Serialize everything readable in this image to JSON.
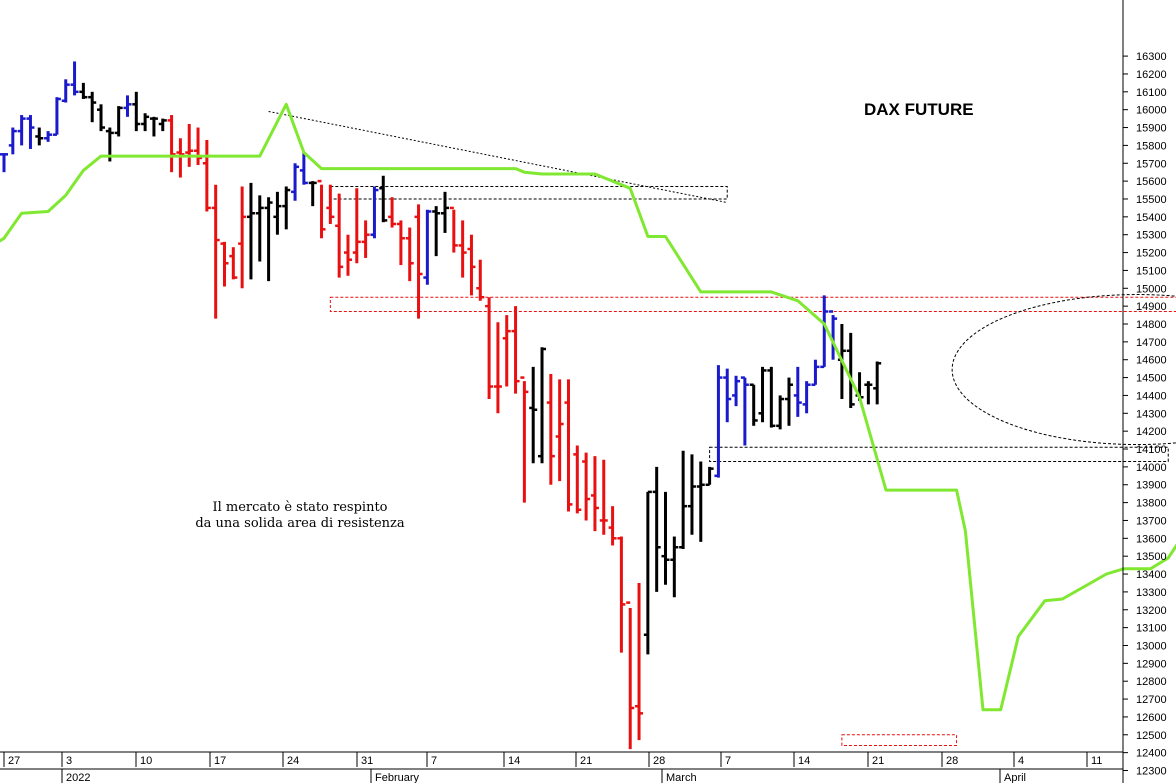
{
  "chart_data": {
    "type": "ohlc",
    "title": "DAX FUTURE",
    "annotation": [
      "Il mercato è stato respinto",
      "da una solida area di resistenza"
    ],
    "ylim": [
      12250,
      16400
    ],
    "y_ticks": [
      12300,
      12400,
      12500,
      12600,
      12700,
      12800,
      12900,
      13000,
      13100,
      13200,
      13300,
      13400,
      13500,
      13600,
      13700,
      13800,
      13900,
      14000,
      14100,
      14200,
      14300,
      14400,
      14500,
      14600,
      14700,
      14800,
      14900,
      15000,
      15100,
      15200,
      15300,
      15400,
      15500,
      15600,
      15700,
      15800,
      15900,
      16000,
      16100,
      16200,
      16300
    ],
    "x_day_labels": [
      "27",
      "3",
      "10",
      "17",
      "24",
      "31",
      "7",
      "14",
      "21",
      "28",
      "7",
      "14",
      "21",
      "28",
      "4",
      "11"
    ],
    "x_month_labels": [
      "2022",
      "February",
      "March",
      "April"
    ],
    "colors": {
      "up": "#1a1acc",
      "down": "#e81010",
      "neutral": "#000000",
      "stop": "#80e830",
      "box_red": "#e81010",
      "box_black": "#000000"
    },
    "bars": [
      {
        "d": 0,
        "o": 15750,
        "h": 15750,
        "l": 15650,
        "c": 15750,
        "k": "up"
      },
      {
        "d": 1,
        "o": 15800,
        "h": 15900,
        "l": 15750,
        "c": 15880,
        "k": "up"
      },
      {
        "d": 2,
        "o": 15880,
        "h": 15970,
        "l": 15800,
        "c": 15950,
        "k": "up"
      },
      {
        "d": 3,
        "o": 15950,
        "h": 15970,
        "l": 15780,
        "c": 15900,
        "k": "up"
      },
      {
        "d": 4,
        "o": 15850,
        "h": 15900,
        "l": 15800,
        "c": 15840,
        "k": "neutral"
      },
      {
        "d": 5,
        "o": 15840,
        "h": 15880,
        "l": 15820,
        "c": 15860,
        "k": "up"
      },
      {
        "d": 6,
        "o": 15860,
        "h": 16070,
        "l": 15860,
        "c": 16060,
        "k": "up"
      },
      {
        "d": 7,
        "o": 16050,
        "h": 16170,
        "l": 16040,
        "c": 16140,
        "k": "up"
      },
      {
        "d": 8,
        "o": 16140,
        "h": 16270,
        "l": 16080,
        "c": 16100,
        "k": "up"
      },
      {
        "d": 9,
        "o": 16100,
        "h": 16150,
        "l": 16060,
        "c": 16070,
        "k": "neutral"
      },
      {
        "d": 10,
        "o": 16070,
        "h": 16100,
        "l": 15930,
        "c": 16040,
        "k": "neutral"
      },
      {
        "d": 11,
        "o": 16000,
        "h": 16030,
        "l": 15880,
        "c": 15900,
        "k": "neutral"
      },
      {
        "d": 12,
        "o": 15880,
        "h": 15900,
        "l": 15710,
        "c": 15870,
        "k": "neutral"
      },
      {
        "d": 13,
        "o": 15870,
        "h": 16020,
        "l": 15850,
        "c": 16010,
        "k": "neutral"
      },
      {
        "d": 14,
        "o": 16010,
        "h": 16080,
        "l": 15960,
        "c": 16030,
        "k": "up"
      },
      {
        "d": 15,
        "o": 16030,
        "h": 16100,
        "l": 15880,
        "c": 15920,
        "k": "neutral"
      },
      {
        "d": 16,
        "o": 15920,
        "h": 15980,
        "l": 15880,
        "c": 15960,
        "k": "neutral"
      },
      {
        "d": 17,
        "o": 15950,
        "h": 15960,
        "l": 15850,
        "c": 15950,
        "k": "neutral"
      },
      {
        "d": 18,
        "o": 15920,
        "h": 15950,
        "l": 15880,
        "c": 15940,
        "k": "neutral"
      },
      {
        "d": 19,
        "o": 15940,
        "h": 15970,
        "l": 15650,
        "c": 15750,
        "k": "down"
      },
      {
        "d": 20,
        "o": 15760,
        "h": 15840,
        "l": 15620,
        "c": 15750,
        "k": "down"
      },
      {
        "d": 21,
        "o": 15760,
        "h": 15920,
        "l": 15680,
        "c": 15770,
        "k": "down"
      },
      {
        "d": 22,
        "o": 15770,
        "h": 15900,
        "l": 15690,
        "c": 15730,
        "k": "down"
      },
      {
        "d": 23,
        "o": 15700,
        "h": 15830,
        "l": 15430,
        "c": 15450,
        "k": "down"
      },
      {
        "d": 24,
        "o": 15450,
        "h": 15580,
        "l": 14830,
        "c": 15270,
        "k": "down"
      },
      {
        "d": 25,
        "o": 15250,
        "h": 15260,
        "l": 15010,
        "c": 15140,
        "k": "down"
      },
      {
        "d": 26,
        "o": 15180,
        "h": 15230,
        "l": 15050,
        "c": 15060,
        "k": "down"
      },
      {
        "d": 27,
        "o": 15250,
        "h": 15570,
        "l": 15000,
        "c": 15400,
        "k": "down"
      },
      {
        "d": 28,
        "o": 15400,
        "h": 15590,
        "l": 15050,
        "c": 15420,
        "k": "neutral"
      },
      {
        "d": 29,
        "o": 15420,
        "h": 15520,
        "l": 15150,
        "c": 15450,
        "k": "neutral"
      },
      {
        "d": 30,
        "o": 15450,
        "h": 15510,
        "l": 15040,
        "c": 15480,
        "k": "neutral"
      },
      {
        "d": 31,
        "o": 15400,
        "h": 15540,
        "l": 15300,
        "c": 15460,
        "k": "neutral"
      },
      {
        "d": 32,
        "o": 15460,
        "h": 15570,
        "l": 15330,
        "c": 15550,
        "k": "neutral"
      },
      {
        "d": 33,
        "o": 15540,
        "h": 15700,
        "l": 15490,
        "c": 15680,
        "k": "up"
      },
      {
        "d": 34,
        "o": 15660,
        "h": 15760,
        "l": 15580,
        "c": 15590,
        "k": "up"
      },
      {
        "d": 35,
        "o": 15590,
        "h": 15600,
        "l": 15460,
        "c": 15590,
        "k": "neutral"
      },
      {
        "d": 36,
        "o": 15600,
        "h": 15580,
        "l": 15280,
        "c": 15330,
        "k": "down"
      },
      {
        "d": 37,
        "o": 15450,
        "h": 15580,
        "l": 15360,
        "c": 15400,
        "k": "down"
      },
      {
        "d": 38,
        "o": 15350,
        "h": 15530,
        "l": 15060,
        "c": 15120,
        "k": "down"
      },
      {
        "d": 39,
        "o": 15200,
        "h": 15300,
        "l": 15070,
        "c": 15160,
        "k": "down"
      },
      {
        "d": 40,
        "o": 15200,
        "h": 15560,
        "l": 15140,
        "c": 15260,
        "k": "down"
      },
      {
        "d": 41,
        "o": 15260,
        "h": 15380,
        "l": 15170,
        "c": 15300,
        "k": "down"
      },
      {
        "d": 42,
        "o": 15300,
        "h": 15570,
        "l": 15280,
        "c": 15550,
        "k": "up"
      },
      {
        "d": 43,
        "o": 15560,
        "h": 15630,
        "l": 15370,
        "c": 15380,
        "k": "neutral"
      },
      {
        "d": 44,
        "o": 15400,
        "h": 15510,
        "l": 15340,
        "c": 15360,
        "k": "down"
      },
      {
        "d": 45,
        "o": 15360,
        "h": 15380,
        "l": 15130,
        "c": 15280,
        "k": "down"
      },
      {
        "d": 46,
        "o": 15280,
        "h": 15340,
        "l": 15040,
        "c": 15140,
        "k": "down"
      },
      {
        "d": 47,
        "o": 15400,
        "h": 15470,
        "l": 14830,
        "c": 15080,
        "k": "down"
      },
      {
        "d": 48,
        "o": 15060,
        "h": 15440,
        "l": 15020,
        "c": 15430,
        "k": "up"
      },
      {
        "d": 49,
        "o": 15430,
        "h": 15460,
        "l": 15180,
        "c": 15420,
        "k": "neutral"
      },
      {
        "d": 50,
        "o": 15420,
        "h": 15540,
        "l": 15310,
        "c": 15450,
        "k": "neutral"
      },
      {
        "d": 51,
        "o": 15450,
        "h": 15440,
        "l": 15200,
        "c": 15240,
        "k": "down"
      },
      {
        "d": 52,
        "o": 15240,
        "h": 15380,
        "l": 15060,
        "c": 15200,
        "k": "down"
      },
      {
        "d": 53,
        "o": 15220,
        "h": 15300,
        "l": 14960,
        "c": 15120,
        "k": "down"
      },
      {
        "d": 54,
        "o": 15000,
        "h": 15160,
        "l": 14930,
        "c": 14950,
        "k": "down"
      },
      {
        "d": 55,
        "o": 14900,
        "h": 14950,
        "l": 14380,
        "c": 14450,
        "k": "down"
      },
      {
        "d": 56,
        "o": 14450,
        "h": 14810,
        "l": 14300,
        "c": 14450,
        "k": "down"
      },
      {
        "d": 57,
        "o": 14720,
        "h": 14850,
        "l": 14450,
        "c": 14760,
        "k": "down"
      },
      {
        "d": 58,
        "o": 14760,
        "h": 14900,
        "l": 14410,
        "c": 14480,
        "k": "down"
      },
      {
        "d": 59,
        "o": 14500,
        "h": 14480,
        "l": 13800,
        "c": 14420,
        "k": "down"
      },
      {
        "d": 60,
        "o": 14330,
        "h": 14560,
        "l": 14020,
        "c": 14320,
        "k": "neutral"
      },
      {
        "d": 61,
        "o": 14060,
        "h": 14670,
        "l": 14020,
        "c": 14660,
        "k": "neutral"
      },
      {
        "d": 62,
        "o": 14360,
        "h": 14520,
        "l": 13900,
        "c": 14060,
        "k": "down"
      },
      {
        "d": 63,
        "o": 14170,
        "h": 14490,
        "l": 13920,
        "c": 14240,
        "k": "down"
      },
      {
        "d": 64,
        "o": 14360,
        "h": 14490,
        "l": 13750,
        "c": 13790,
        "k": "down"
      },
      {
        "d": 65,
        "o": 14070,
        "h": 14120,
        "l": 13740,
        "c": 13760,
        "k": "down"
      },
      {
        "d": 66,
        "o": 14030,
        "h": 14080,
        "l": 13700,
        "c": 13820,
        "k": "down"
      },
      {
        "d": 67,
        "o": 13840,
        "h": 14060,
        "l": 13640,
        "c": 13770,
        "k": "down"
      },
      {
        "d": 68,
        "o": 13700,
        "h": 14040,
        "l": 13620,
        "c": 13700,
        "k": "down"
      },
      {
        "d": 69,
        "o": 13660,
        "h": 13780,
        "l": 13560,
        "c": 13600,
        "k": "down"
      },
      {
        "d": 70,
        "o": 13600,
        "h": 13610,
        "l": 12960,
        "c": 13230,
        "k": "down"
      },
      {
        "d": 71,
        "o": 13240,
        "h": 13210,
        "l": 12420,
        "c": 12650,
        "k": "down"
      },
      {
        "d": 72,
        "o": 12660,
        "h": 13350,
        "l": 12470,
        "c": 12620,
        "k": "down"
      },
      {
        "d": 73,
        "o": 13060,
        "h": 13860,
        "l": 12950,
        "c": 13860,
        "k": "neutral"
      },
      {
        "d": 74,
        "o": 13860,
        "h": 14000,
        "l": 13300,
        "c": 13550,
        "k": "neutral"
      },
      {
        "d": 75,
        "o": 13500,
        "h": 13860,
        "l": 13340,
        "c": 13480,
        "k": "neutral"
      },
      {
        "d": 76,
        "o": 13480,
        "h": 13610,
        "l": 13270,
        "c": 13550,
        "k": "neutral"
      },
      {
        "d": 77,
        "o": 13550,
        "h": 14090,
        "l": 13540,
        "c": 13780,
        "k": "neutral"
      },
      {
        "d": 78,
        "o": 13780,
        "h": 14070,
        "l": 13620,
        "c": 13890,
        "k": "neutral"
      },
      {
        "d": 79,
        "o": 13890,
        "h": 14030,
        "l": 13580,
        "c": 13900,
        "k": "neutral"
      },
      {
        "d": 80,
        "o": 13900,
        "h": 14000,
        "l": 13900,
        "c": 13990,
        "k": "neutral"
      },
      {
        "d": 81,
        "o": 13950,
        "h": 14570,
        "l": 13940,
        "c": 14500,
        "k": "up"
      },
      {
        "d": 82,
        "o": 14500,
        "h": 14550,
        "l": 14250,
        "c": 14380,
        "k": "up"
      },
      {
        "d": 83,
        "o": 14400,
        "h": 14510,
        "l": 14340,
        "c": 14480,
        "k": "up"
      },
      {
        "d": 84,
        "o": 14500,
        "h": 14500,
        "l": 14120,
        "c": 14460,
        "k": "up"
      },
      {
        "d": 85,
        "o": 14460,
        "h": 14460,
        "l": 14230,
        "c": 14260,
        "k": "neutral"
      },
      {
        "d": 86,
        "o": 14300,
        "h": 14560,
        "l": 14250,
        "c": 14540,
        "k": "neutral"
      },
      {
        "d": 87,
        "o": 14540,
        "h": 14560,
        "l": 14220,
        "c": 14230,
        "k": "neutral"
      },
      {
        "d": 88,
        "o": 14230,
        "h": 14400,
        "l": 14210,
        "c": 14380,
        "k": "neutral"
      },
      {
        "d": 89,
        "o": 14380,
        "h": 14500,
        "l": 14230,
        "c": 14460,
        "k": "neutral"
      },
      {
        "d": 90,
        "o": 14400,
        "h": 14560,
        "l": 14280,
        "c": 14360,
        "k": "up"
      },
      {
        "d": 91,
        "o": 14350,
        "h": 14480,
        "l": 14300,
        "c": 14460,
        "k": "up"
      },
      {
        "d": 92,
        "o": 14460,
        "h": 14600,
        "l": 14460,
        "c": 14560,
        "k": "up"
      },
      {
        "d": 93,
        "o": 14560,
        "h": 14960,
        "l": 14560,
        "c": 14870,
        "k": "up"
      },
      {
        "d": 94,
        "o": 14870,
        "h": 14850,
        "l": 14600,
        "c": 14830,
        "k": "up"
      },
      {
        "d": 95,
        "o": 14600,
        "h": 14800,
        "l": 14380,
        "c": 14650,
        "k": "neutral"
      },
      {
        "d": 96,
        "o": 14650,
        "h": 14750,
        "l": 14330,
        "c": 14350,
        "k": "neutral"
      },
      {
        "d": 97,
        "o": 14400,
        "h": 14530,
        "l": 14370,
        "c": 14390,
        "k": "neutral"
      },
      {
        "d": 98,
        "o": 14460,
        "h": 14480,
        "l": 14350,
        "c": 14460,
        "k": "neutral"
      },
      {
        "d": 99,
        "o": 14440,
        "h": 14590,
        "l": 14350,
        "c": 14580,
        "k": "neutral"
      }
    ],
    "stop_line": [
      [
        -1,
        15250
      ],
      [
        0,
        15280
      ],
      [
        2,
        15420
      ],
      [
        5,
        15430
      ],
      [
        7,
        15520
      ],
      [
        9,
        15660
      ],
      [
        11,
        15740
      ],
      [
        29,
        15740
      ],
      [
        32,
        16030
      ],
      [
        34,
        15760
      ],
      [
        36,
        15670
      ],
      [
        58,
        15670
      ],
      [
        59,
        15650
      ],
      [
        61,
        15640
      ],
      [
        67,
        15640
      ],
      [
        71,
        15560
      ],
      [
        73,
        15290
      ],
      [
        75,
        15290
      ],
      [
        79,
        14980
      ],
      [
        87,
        14980
      ],
      [
        90,
        14930
      ],
      [
        93,
        14800
      ],
      [
        97,
        14390
      ],
      [
        100,
        13870
      ],
      [
        108,
        13870
      ],
      [
        109,
        13640
      ],
      [
        111,
        12640
      ],
      [
        113,
        12640
      ],
      [
        115,
        13050
      ],
      [
        118,
        13250
      ],
      [
        120,
        13260
      ],
      [
        125,
        13400
      ],
      [
        127,
        13430
      ],
      [
        130,
        13430
      ],
      [
        132,
        13490
      ],
      [
        134,
        13640
      ],
      [
        136,
        13910
      ],
      [
        145,
        13910
      ]
    ],
    "resistance_line": [
      [
        30,
        15990
      ],
      [
        82,
        15480
      ]
    ],
    "zones": [
      {
        "x0": 37,
        "x1": 82,
        "y0": 15500,
        "y1": 15570,
        "color": "black"
      },
      {
        "x0": 37,
        "x1": 142,
        "y0": 14870,
        "y1": 14950,
        "color": "red"
      },
      {
        "x0": 80,
        "x1": 132,
        "y0": 14030,
        "y1": 14110,
        "color": "black"
      },
      {
        "x0": 95,
        "x1": 108,
        "y0": 12440,
        "y1": 12500,
        "color": "red"
      }
    ],
    "ellipse": {
      "xc": 128.5,
      "yc": 14545,
      "rx": 21,
      "ry": 420
    }
  }
}
